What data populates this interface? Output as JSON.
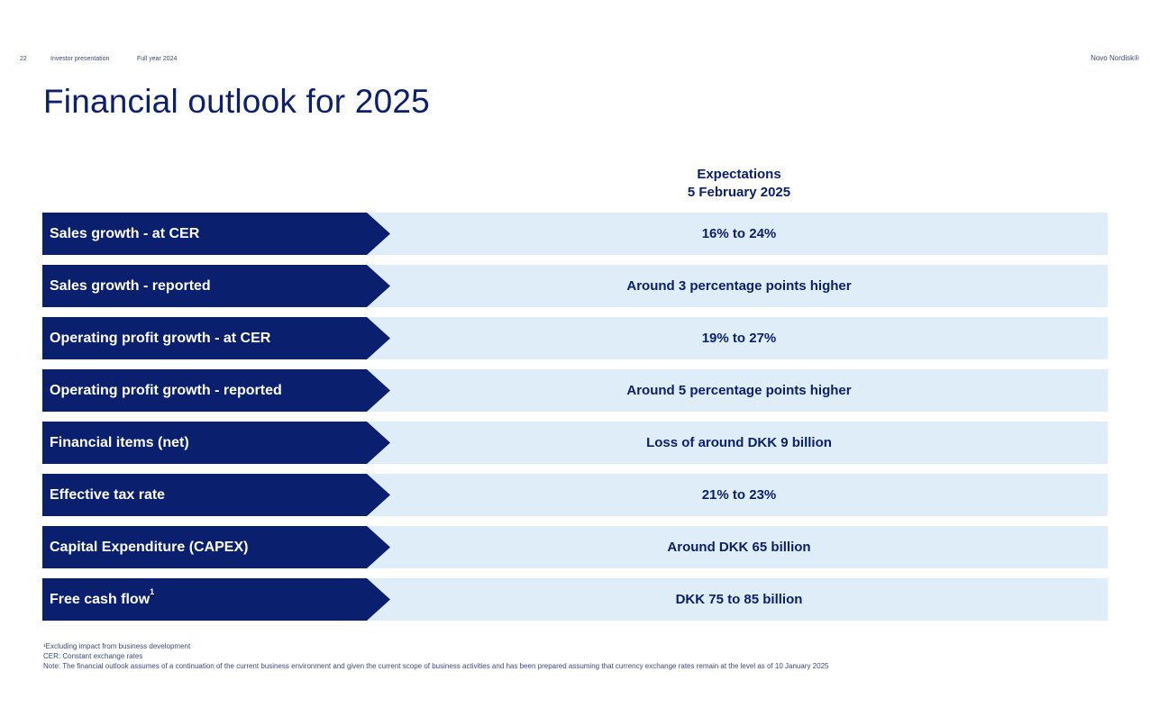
{
  "header": {
    "page_number": "22",
    "document": "Investor presentation",
    "period": "Full year 2024",
    "brand": "Novo Nordisk®"
  },
  "title": "Financial outlook for 2025",
  "column_header": {
    "line1": "Expectations",
    "line2": "5 February 2025"
  },
  "rows": [
    {
      "label": "Sales growth - at CER",
      "sup": "",
      "value": "16% to 24%"
    },
    {
      "label": "Sales growth - reported",
      "sup": "",
      "value": "Around 3 percentage points higher"
    },
    {
      "label": "Operating profit growth - at CER",
      "sup": "",
      "value": "19% to 27%"
    },
    {
      "label": "Operating profit growth - reported",
      "sup": "",
      "value": "Around 5 percentage points higher"
    },
    {
      "label": "Financial items (net)",
      "sup": "",
      "value": "Loss of around DKK 9 billion"
    },
    {
      "label": "Effective tax rate",
      "sup": "",
      "value": "21% to 23%"
    },
    {
      "label": "Capital Expenditure (CAPEX)",
      "sup": "",
      "value": "Around DKK 65 billion"
    },
    {
      "label": "Free cash flow",
      "sup": "1",
      "value": "DKK 75 to 85 billion"
    }
  ],
  "footnotes": {
    "note1": "¹Excluding impact from business development",
    "note2": "CER: Constant exchange rates",
    "note3": "Note: The financial outlook assumes of a continuation of the current business environment and given the current scope of business activities and has been prepared assuming that currency exchange rates remain at the level as of 10 January 2025"
  },
  "colors": {
    "label_bg": "#0a1f6e",
    "row_bg": "#dfedf9",
    "text": "#0b1f6b"
  }
}
